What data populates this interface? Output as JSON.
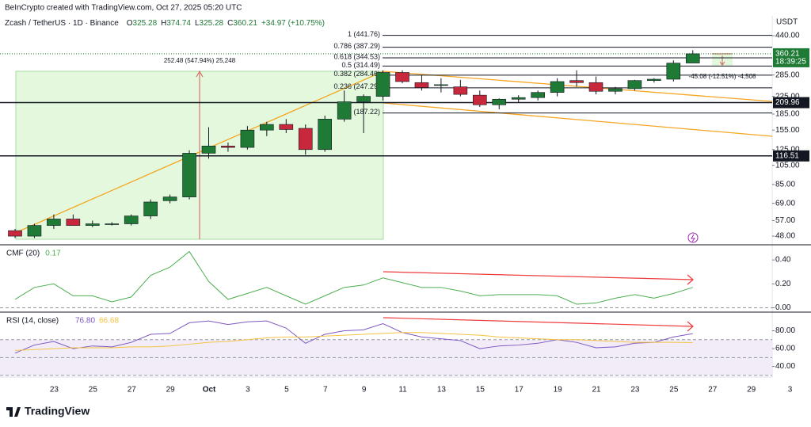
{
  "header": {
    "attribution": "BeInCrypto created with TradingView.com, Oct 27, 2025 05:20 UTC",
    "symbol": "Zcash / TetherUS · 1D · Binance",
    "ohlc_labels": [
      "O",
      "H",
      "L",
      "C"
    ],
    "change": "+34.97 (+10.75%)"
  },
  "chart_data": [
    {
      "type": "candlestick",
      "categories": [
        null,
        "23",
        null,
        "25",
        null,
        "27",
        null,
        "29",
        null,
        "Oct",
        null,
        "3",
        null,
        "5",
        null,
        "7",
        null,
        "9",
        null,
        "11",
        null,
        "13",
        null,
        "15",
        null,
        "17",
        null,
        "19",
        null,
        "21",
        null,
        "23",
        null,
        "25",
        null,
        "27",
        null,
        "29",
        null,
        "3"
      ],
      "open": [
        51,
        48,
        54,
        58,
        54,
        55,
        55,
        60,
        71,
        74,
        120,
        130,
        128,
        155,
        165,
        158,
        125,
        175,
        212,
        225,
        293,
        262,
        255,
        250,
        228,
        205,
        218,
        222,
        235,
        268,
        262,
        238,
        245,
        268,
        272,
        325.28,
        null,
        null,
        null,
        null
      ],
      "high": [
        52,
        55,
        61,
        61,
        57,
        56,
        61,
        72,
        76,
        124,
        160,
        135,
        162,
        170,
        175,
        165,
        182,
        240,
        230,
        300,
        300,
        285,
        275,
        270,
        240,
        220,
        228,
        240,
        275,
        300,
        280,
        250,
        270,
        275,
        335,
        374.74,
        null,
        null,
        null,
        null
      ],
      "low": [
        47,
        47,
        52,
        54,
        53,
        54,
        54,
        58,
        69,
        72,
        113,
        122,
        125,
        145,
        150,
        118,
        122,
        170,
        150,
        215,
        260,
        240,
        235,
        225,
        200,
        195,
        210,
        215,
        225,
        250,
        230,
        230,
        240,
        262,
        265,
        325.28,
        null,
        null,
        null,
        null
      ],
      "close": [
        48,
        54,
        58,
        54,
        55,
        55,
        60,
        70,
        74,
        120,
        130,
        128,
        155,
        165,
        156,
        125,
        175,
        212,
        225,
        293,
        265,
        248,
        256,
        230,
        205,
        218,
        222,
        235,
        265,
        262,
        238,
        245,
        268,
        272,
        325,
        360.21,
        null,
        null,
        null,
        null
      ],
      "up_color": "#1e7a35",
      "down_color": "#c8283c",
      "log_scale": true,
      "unit": "USDT",
      "ylim": [
        44,
        548
      ],
      "yticks": [
        {
          "value": 440,
          "label": "440.00"
        },
        {
          "value": 285,
          "label": "285.00"
        },
        {
          "value": 225,
          "label": "225.00"
        },
        {
          "value": 185,
          "label": "185.00"
        },
        {
          "value": 155,
          "label": "155.00"
        },
        {
          "value": 125,
          "label": "125.00"
        },
        {
          "value": 105,
          "label": "105.00"
        },
        {
          "value": 85,
          "label": "85.00"
        },
        {
          "value": 69,
          "label": "69.00"
        },
        {
          "value": 57,
          "label": "57.00"
        },
        {
          "value": 48,
          "label": "48.00"
        }
      ],
      "fib_levels": [
        {
          "value": 441.76,
          "label": "1 (441.76)"
        },
        {
          "value": 387.29,
          "label": "0.786 (387.29)"
        },
        {
          "value": 344.53,
          "label": "0.618 (344.53)"
        },
        {
          "value": 314.49,
          "label": "0.5 (314.49)"
        },
        {
          "value": 284.46,
          "label": "0.382 (284.46)"
        },
        {
          "value": 247.29,
          "label": "0.236 (247.29)"
        },
        {
          "value": 187.22,
          "label": "(187.22)"
        }
      ],
      "levels": [
        209.96,
        116.51
      ],
      "countdown": "18:39:25",
      "annotations": [
        "252.48 (547.94%) 25,248",
        "-45.08 (-12.51%) -4,508"
      ]
    },
    {
      "type": "line",
      "title": "CMF (20)",
      "color": "#4caf50",
      "values": [
        0.07,
        0.17,
        0.2,
        0.1,
        0.1,
        0.05,
        0.09,
        0.27,
        0.34,
        0.47,
        0.22,
        0.07,
        0.12,
        0.17,
        0.1,
        0.03,
        0.1,
        0.17,
        0.19,
        0.25,
        0.21,
        0.17,
        0.17,
        0.14,
        0.1,
        0.11,
        0.11,
        0.11,
        0.1,
        0.03,
        0.04,
        0.08,
        0.11,
        0.08,
        0.12,
        0.17,
        null,
        null,
        null,
        null
      ],
      "ylim": [
        -0.03,
        0.52
      ],
      "yticks": [
        {
          "value": 0.4,
          "label": "0.40"
        },
        {
          "value": 0.2,
          "label": "0.20"
        },
        {
          "value": 0,
          "label": "0.00"
        }
      ]
    },
    {
      "type": "line",
      "title": "RSI (14, close)",
      "series": [
        {
          "color": "#7e57c2",
          "values": [
            55,
            64,
            68,
            60,
            63,
            62,
            67,
            76,
            77,
            89,
            91,
            87,
            90,
            91,
            83,
            66,
            76,
            80,
            81,
            88,
            78,
            73,
            71,
            69,
            60,
            63,
            64,
            66,
            70,
            67,
            61,
            62,
            66,
            67,
            73,
            76.8,
            null,
            null,
            null,
            null
          ],
          "value_labels": [
            null,
            null,
            null,
            null,
            null,
            null,
            null,
            null,
            null,
            null,
            null,
            null,
            null,
            null,
            null,
            null,
            null,
            null,
            null,
            null,
            null,
            null,
            null,
            null,
            null,
            null,
            null,
            null,
            null,
            null,
            null,
            null,
            null,
            null,
            null,
            "76.80",
            null,
            null,
            null,
            null
          ]
        },
        {
          "color": "#f5c343",
          "values": [
            58,
            59,
            60,
            61,
            61,
            61,
            62,
            62,
            63,
            65,
            67,
            68,
            70,
            72,
            73,
            73,
            74,
            75,
            76,
            77,
            78,
            78,
            77,
            76,
            75,
            73,
            72,
            71,
            70,
            70,
            69,
            68,
            67,
            67,
            67,
            66.68,
            null,
            null,
            null,
            null
          ]
        }
      ],
      "levels": [
        70,
        50,
        30
      ],
      "ylim": [
        29,
        100
      ],
      "yticks": [
        {
          "value": 80,
          "label": "80.00"
        },
        {
          "value": 60,
          "label": "60.00"
        },
        {
          "value": 40,
          "label": "40.00"
        }
      ]
    }
  ],
  "footer": {
    "brand": "TradingView"
  }
}
